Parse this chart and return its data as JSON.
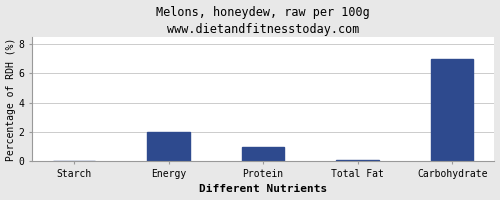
{
  "title": "Melons, honeydew, raw per 100g",
  "subtitle": "www.dietandfitnesstoday.com",
  "categories": [
    "Starch",
    "Energy",
    "Protein",
    "Total Fat",
    "Carbohydrate"
  ],
  "values": [
    0,
    2,
    1,
    0.1,
    7
  ],
  "bar_color": "#2e4a8e",
  "xlabel": "Different Nutrients",
  "ylabel": "Percentage of RDH (%)",
  "ylim": [
    0,
    8.5
  ],
  "yticks": [
    0,
    2,
    4,
    6,
    8
  ],
  "background_color": "#e8e8e8",
  "plot_bg_color": "#ffffff",
  "title_fontsize": 8.5,
  "xlabel_fontsize": 8,
  "ylabel_fontsize": 7,
  "tick_fontsize": 7,
  "bar_width": 0.45
}
